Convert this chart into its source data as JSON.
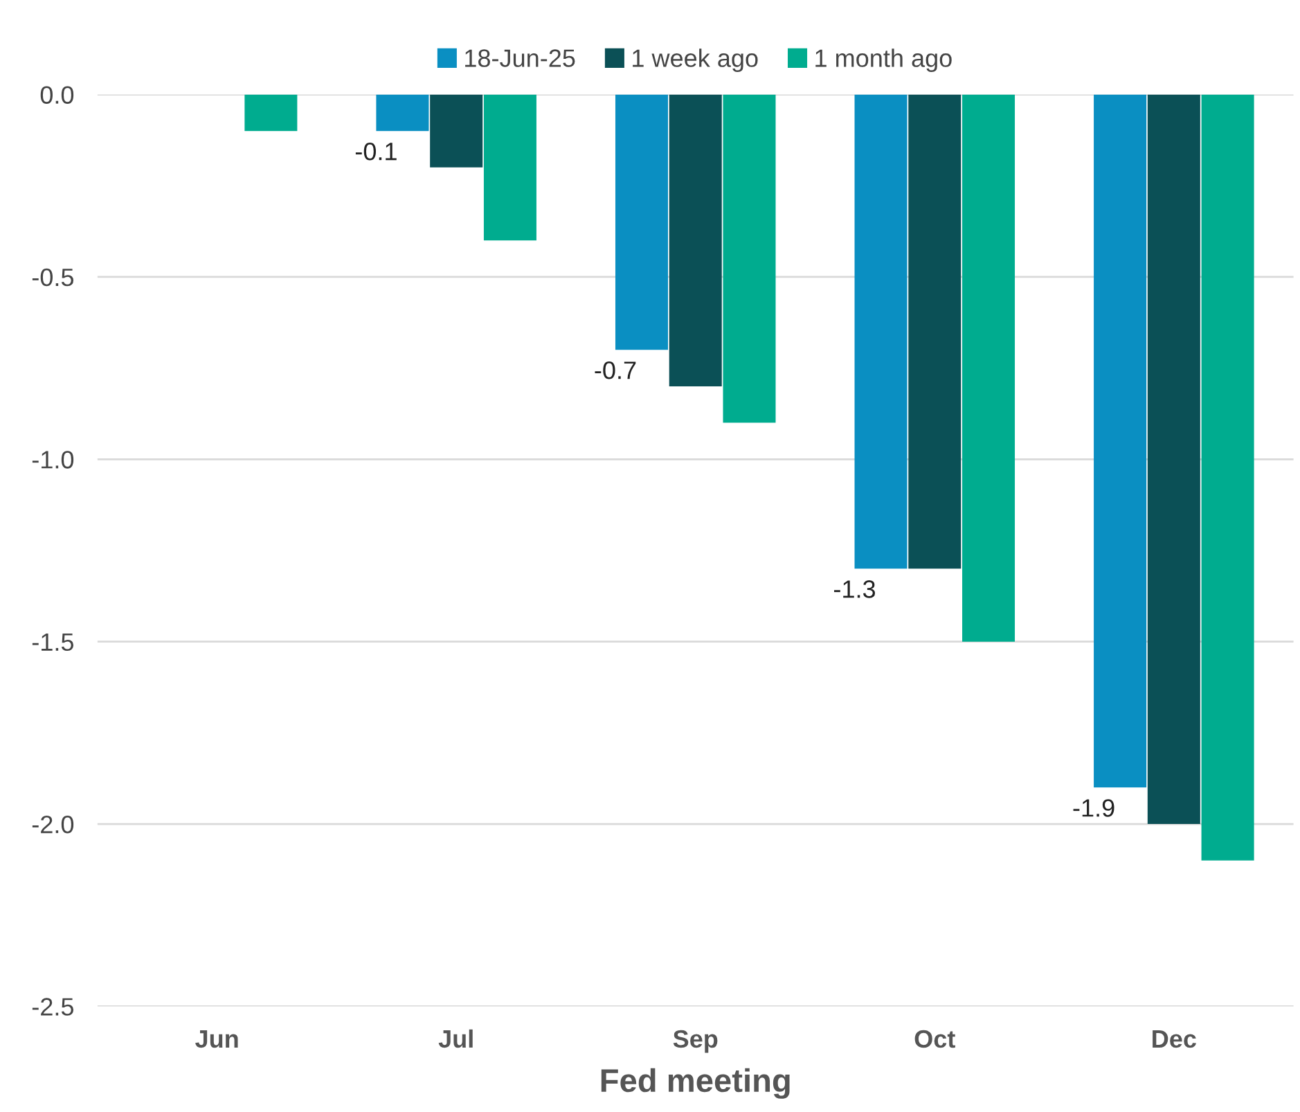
{
  "chart_data": {
    "type": "bar",
    "xlabel": "Fed meeting",
    "categories": [
      "Jun",
      "Jul",
      "Sep",
      "Oct",
      "Dec"
    ],
    "series": [
      {
        "name": "18-Jun-25",
        "color": "#0a8fc2",
        "values": [
          null,
          -0.1,
          -0.7,
          -1.3,
          -1.9
        ],
        "value_labels": [
          null,
          "-0.1",
          "-0.7",
          "-1.3",
          "-1.9"
        ]
      },
      {
        "name": "1 week ago",
        "color": "#0b5056",
        "values": [
          null,
          -0.2,
          -0.8,
          -1.3,
          -2.0
        ]
      },
      {
        "name": "1 month ago",
        "color": "#00ac8f",
        "values": [
          -0.1,
          -0.4,
          -0.9,
          -1.5,
          -2.1
        ]
      }
    ],
    "ylim": [
      -2.5,
      0
    ],
    "yticks": [
      {
        "value": 0,
        "label": "0.0"
      },
      {
        "value": -0.5,
        "label": "-0.5"
      },
      {
        "value": -1,
        "label": "-1.0"
      },
      {
        "value": -1.5,
        "label": "-1.5"
      },
      {
        "value": -2,
        "label": "-2.0"
      },
      {
        "value": -2.5,
        "label": "-2.5"
      }
    ],
    "grid": "y",
    "legend": "top"
  }
}
